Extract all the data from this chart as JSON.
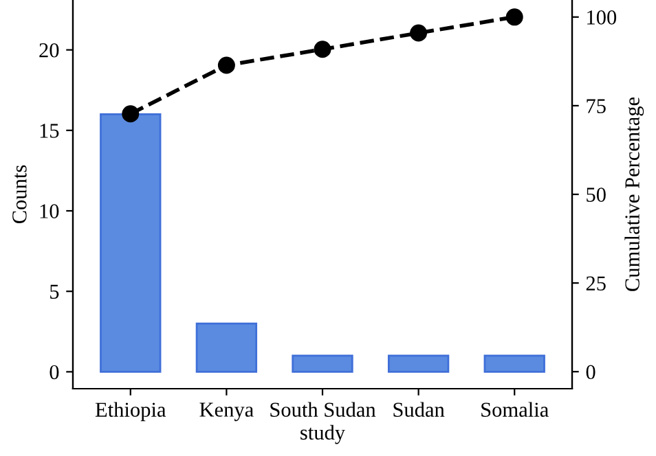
{
  "chart_data": {
    "type": "bar",
    "xlabel": "study",
    "ylabel": "Counts",
    "y2label": "Cumulative Percentage",
    "categories": [
      "Ethiopia",
      "Kenya",
      "South Sudan",
      "Sudan",
      "Somalia"
    ],
    "series": [
      {
        "color": "#5b8be0",
        "values": [
          16,
          3,
          1,
          1,
          1
        ]
      },
      {
        "type": "line",
        "axis": "y2",
        "color": "#000000",
        "values": [
          72.7,
          86.4,
          90.9,
          95.5,
          100
        ],
        "marker": "circle",
        "line_style": "dashed"
      }
    ],
    "ylim": [
      -1.05,
      23.1
    ],
    "yticks": [
      0,
      5,
      10,
      15,
      20
    ],
    "y2lim": [
      -4.8,
      104.8
    ],
    "y2ticks": [
      0,
      25,
      50,
      75,
      100
    ],
    "grid": false,
    "legend": false
  }
}
